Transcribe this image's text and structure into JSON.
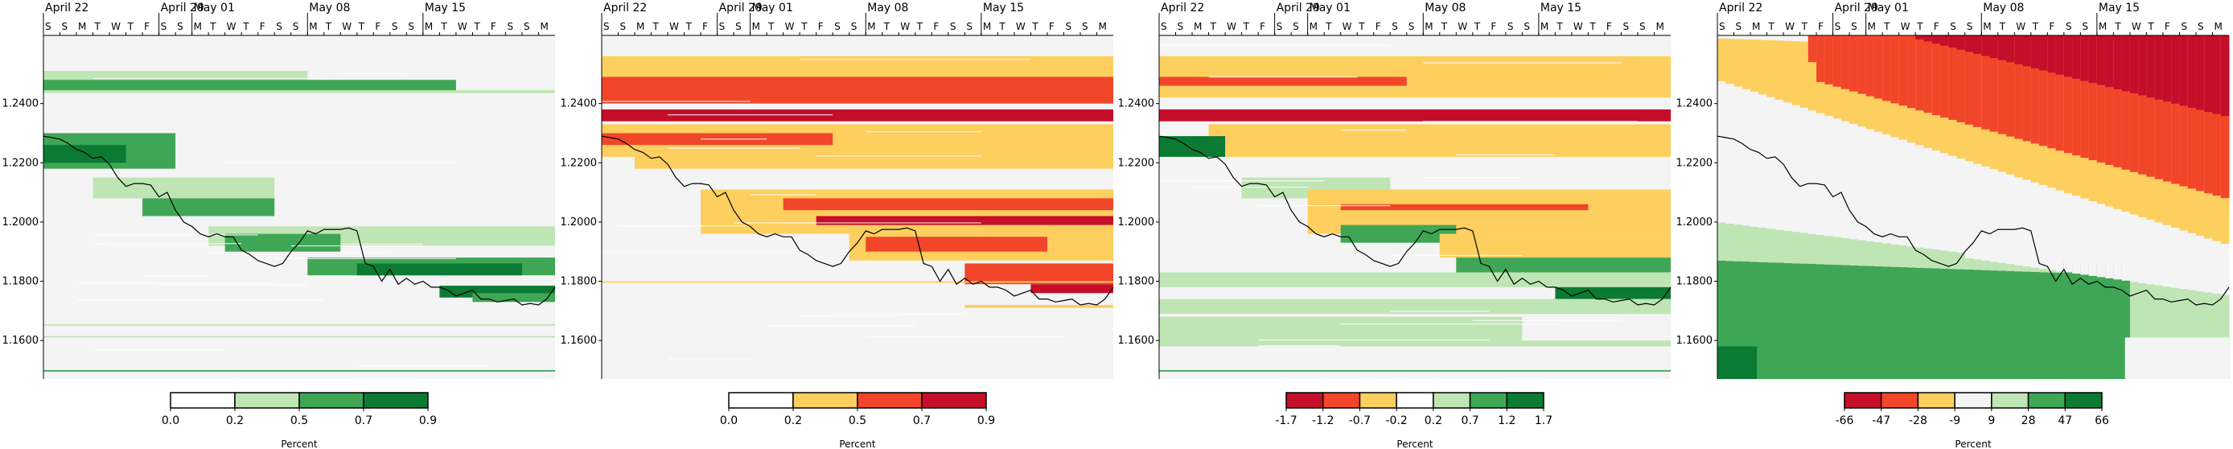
{
  "chart_data": [
    {
      "type": "heatmap",
      "panel": 1,
      "x_axis": {
        "month_labels": [
          "April 22",
          "April 29",
          "May 01",
          "May 08",
          "May 15"
        ],
        "day_labels": [
          "S",
          "S",
          "M",
          "T",
          "W",
          "T",
          "F",
          "S",
          "S",
          "M",
          "T",
          "W",
          "T",
          "F",
          "S",
          "S",
          "M",
          "T",
          "W",
          "T",
          "F",
          "S",
          "S",
          "M",
          "T",
          "W",
          "T",
          "F",
          "S",
          "S",
          "M"
        ]
      },
      "y_axis": {
        "ticks": [
          "1.2400",
          "1.2200",
          "1.2000",
          "1.1800",
          "1.1600"
        ],
        "range": [
          1.147,
          1.263
        ]
      },
      "colorbar": {
        "breaks": [
          "0.0",
          "0.2",
          "0.5",
          "0.7",
          "0.9"
        ],
        "colors": [
          "#ffffff",
          "#bfe5b5",
          "#3fa655",
          "#0b7a33"
        ],
        "label": "Percent"
      },
      "background": "#f4f4f4"
    },
    {
      "type": "heatmap",
      "panel": 2,
      "x_axis": {
        "month_labels": [
          "April 22",
          "April 29",
          "May 01",
          "May 08",
          "May 15"
        ],
        "day_labels": [
          "S",
          "S",
          "M",
          "T",
          "W",
          "T",
          "F",
          "S",
          "S",
          "M",
          "T",
          "W",
          "T",
          "F",
          "S",
          "S",
          "M",
          "T",
          "W",
          "T",
          "F",
          "S",
          "S",
          "M",
          "T",
          "W",
          "T",
          "F",
          "S",
          "S",
          "M"
        ]
      },
      "y_axis": {
        "ticks": [
          "1.2400",
          "1.2200",
          "1.2000",
          "1.1800",
          "1.1600"
        ],
        "range": [
          1.147,
          1.263
        ]
      },
      "colorbar": {
        "breaks": [
          "0.0",
          "0.2",
          "0.5",
          "0.7",
          "0.9"
        ],
        "colors": [
          "#ffffff",
          "#fdcf5f",
          "#f2462b",
          "#c50e2a"
        ],
        "label": "Percent"
      },
      "background": "#f4f4f4"
    },
    {
      "type": "heatmap",
      "panel": 3,
      "x_axis": {
        "month_labels": [
          "April 22",
          "April 29",
          "May 01",
          "May 08",
          "May 15"
        ],
        "day_labels": [
          "S",
          "S",
          "M",
          "T",
          "W",
          "T",
          "F",
          "S",
          "S",
          "M",
          "T",
          "W",
          "T",
          "F",
          "S",
          "S",
          "M",
          "T",
          "W",
          "T",
          "F",
          "S",
          "S",
          "M",
          "T",
          "W",
          "T",
          "F",
          "S",
          "S",
          "M"
        ]
      },
      "y_axis": {
        "ticks": [
          "1.2400",
          "1.2200",
          "1.2000",
          "1.1800",
          "1.1600"
        ],
        "range": [
          1.147,
          1.263
        ]
      },
      "colorbar": {
        "breaks": [
          "-1.7",
          "-1.2",
          "-0.7",
          "-0.2",
          "0.2",
          "0.7",
          "1.2",
          "1.7"
        ],
        "colors": [
          "#c50e2a",
          "#f2462b",
          "#fdcf5f",
          "#ffffff",
          "#bfe5b5",
          "#3fa655",
          "#0b7a33"
        ],
        "label": "Percent"
      },
      "background": "#f4f4f4"
    },
    {
      "type": "heatmap",
      "panel": 4,
      "x_axis": {
        "month_labels": [
          "April 22",
          "April 29",
          "May 01",
          "May 08",
          "May 15"
        ],
        "day_labels": [
          "S",
          "S",
          "M",
          "T",
          "W",
          "T",
          "F",
          "S",
          "S",
          "M",
          "T",
          "W",
          "T",
          "F",
          "S",
          "S",
          "M",
          "T",
          "W",
          "T",
          "F",
          "S",
          "S",
          "M",
          "T",
          "W",
          "T",
          "F",
          "S",
          "S",
          "M"
        ]
      },
      "y_axis": {
        "ticks": [
          "1.2400",
          "1.2200",
          "1.2000",
          "1.1800",
          "1.1600"
        ],
        "range": [
          1.147,
          1.263
        ]
      },
      "colorbar": {
        "breaks": [
          "-66",
          "-47",
          "-28",
          "-9",
          "9",
          "28",
          "47",
          "66"
        ],
        "colors": [
          "#c50e2a",
          "#f2462b",
          "#fdcf5f",
          "#f4f4f4",
          "#bfe5b5",
          "#3fa655",
          "#0b7a33"
        ],
        "label": "Percent"
      },
      "background": "#f4f4f4"
    }
  ],
  "price_series": {
    "x_days": [
      0,
      0.5,
      1,
      1.5,
      2,
      2.5,
      3,
      3.5,
      4,
      4.5,
      5,
      5.5,
      6,
      6.5,
      7,
      7.5,
      8,
      8.5,
      9,
      9.5,
      10,
      10.5,
      11,
      11.5,
      12,
      12.5,
      13,
      13.5,
      14,
      14.5,
      15,
      15.5,
      16,
      16.5,
      17,
      17.5,
      18,
      18.5,
      19,
      19.5,
      20,
      20.5,
      21,
      21.5,
      22,
      22.5,
      23,
      23.5,
      24,
      24.5,
      25,
      25.5,
      26,
      26.5,
      27,
      27.5,
      28,
      28.5,
      29,
      29.5,
      30,
      30.5,
      31
    ],
    "y_price": [
      1.229,
      1.2285,
      1.228,
      1.2265,
      1.2245,
      1.2235,
      1.2215,
      1.222,
      1.2195,
      1.215,
      1.212,
      1.213,
      1.213,
      1.2125,
      1.2085,
      1.21,
      1.204,
      1.2,
      1.1985,
      1.196,
      1.195,
      1.196,
      1.195,
      1.195,
      1.1905,
      1.189,
      1.187,
      1.186,
      1.185,
      1.186,
      1.19,
      1.193,
      1.197,
      1.196,
      1.1975,
      1.1975,
      1.1975,
      1.198,
      1.197,
      1.186,
      1.185,
      1.18,
      1.184,
      1.179,
      1.181,
      1.179,
      1.18,
      1.178,
      1.178,
      1.177,
      1.175,
      1.176,
      1.177,
      1.174,
      1.174,
      1.173,
      1.1735,
      1.174,
      1.172,
      1.1725,
      1.172,
      1.174,
      1.178
    ]
  }
}
